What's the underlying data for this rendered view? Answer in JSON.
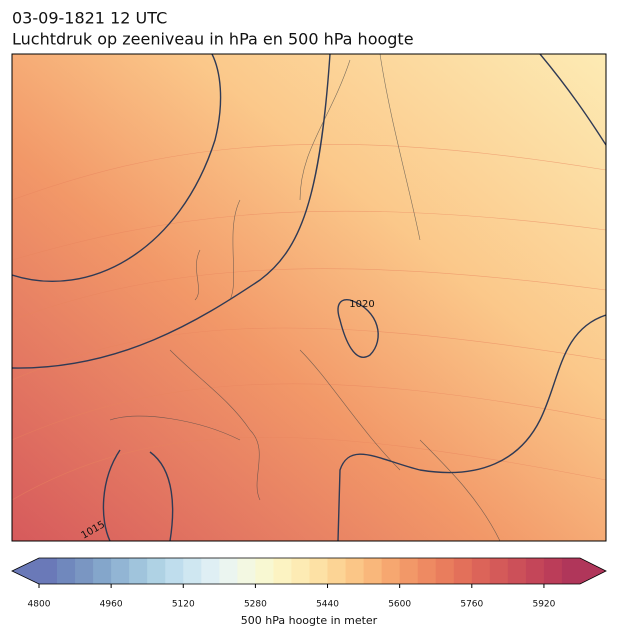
{
  "title": [
    "03-09-1821 12 UTC",
    "Luchtdruk op zeeniveau in hPa en 500 hPa hoogte"
  ],
  "contour_labels": [
    1020,
    1015
  ],
  "colorbar": {
    "label": "500 hPa hoogte in meter",
    "lim": [
      4800,
      6000
    ],
    "ticks": [
      4800,
      4960,
      5120,
      5280,
      5440,
      5600,
      5760,
      5920
    ],
    "colors": [
      "#6a79b8",
      "#7088bd",
      "#7a96c2",
      "#84a6cb",
      "#92b5d4",
      "#a0c4dc",
      "#afd2e4",
      "#bfdded",
      "#cfe7f1",
      "#dfeff4",
      "#ebf5f0",
      "#f3f8e2",
      "#f8f8d2",
      "#fcf3c2",
      "#fdebb4",
      "#fde1a5",
      "#fcd495",
      "#fbc687",
      "#f9b77b",
      "#f6a770",
      "#f29868",
      "#ee8a62",
      "#e97d5d",
      "#e3705a",
      "#dc6459",
      "#d45a59",
      "#cc5059",
      "#c44659",
      "#bb3d59",
      "#b0365a"
    ]
  }
}
